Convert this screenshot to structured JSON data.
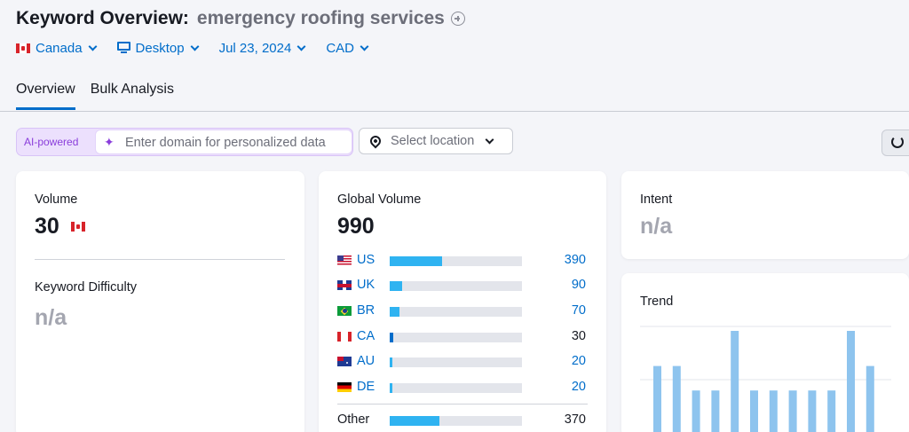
{
  "header": {
    "title_label": "Keyword Overview:",
    "keyword": "emergency roofing services"
  },
  "filters": {
    "country": "Canada",
    "device": "Desktop",
    "date": "Jul 23, 2024",
    "currency": "CAD"
  },
  "tabs": [
    {
      "label": "Overview",
      "active": true
    },
    {
      "label": "Bulk Analysis",
      "active": false
    }
  ],
  "ai_bar": {
    "badge": "AI-powered",
    "placeholder": "Enter domain for personalized data"
  },
  "location": {
    "placeholder": "Select location"
  },
  "volume_card": {
    "label": "Volume",
    "value": "30",
    "difficulty_label": "Keyword Difficulty",
    "difficulty_value": "n/a"
  },
  "global_card": {
    "label": "Global Volume",
    "value": "990",
    "countries": [
      {
        "code": "US",
        "value": "390",
        "share": 0.394
      },
      {
        "code": "UK",
        "value": "90",
        "share": 0.091
      },
      {
        "code": "BR",
        "value": "70",
        "share": 0.071
      },
      {
        "code": "CA",
        "value": "30",
        "share": 0.03
      },
      {
        "code": "AU",
        "value": "20",
        "share": 0.02
      },
      {
        "code": "DE",
        "value": "20",
        "share": 0.02
      }
    ],
    "other": {
      "label": "Other",
      "value": "370",
      "share": 0.374
    }
  },
  "intent_card": {
    "label": "Intent",
    "value": "n/a"
  },
  "trend_card": {
    "label": "Trend",
    "bars": [
      0.67,
      0.67,
      0.44,
      0.44,
      1.0,
      0.44,
      0.44,
      0.44,
      0.44,
      0.44,
      1.0,
      0.67
    ],
    "bar_color": "#8ec4ee"
  }
}
